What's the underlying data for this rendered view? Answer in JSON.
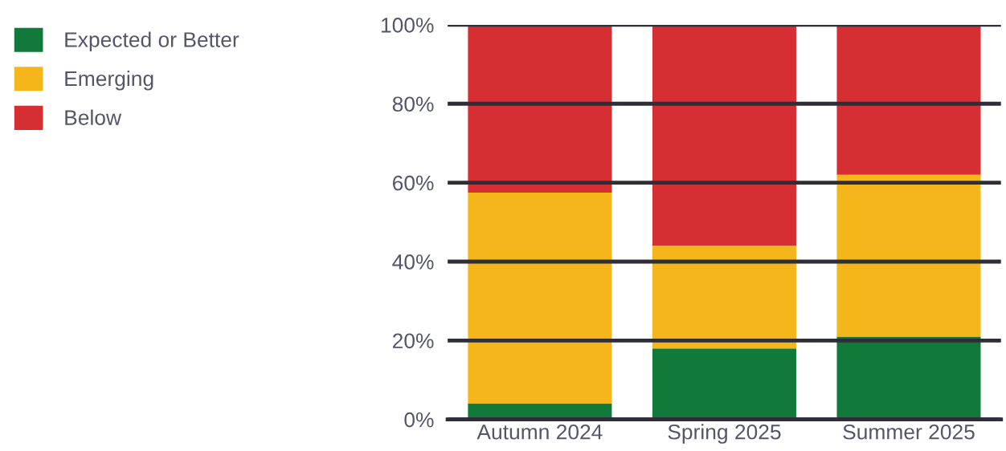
{
  "chart_data": {
    "type": "bar",
    "stacked": true,
    "categories": [
      "Autumn 2024",
      "Spring 2025",
      "Summer 2025"
    ],
    "series": [
      {
        "name": "Expected or Better",
        "color": "#117a3a",
        "values": [
          4,
          18,
          21
        ]
      },
      {
        "name": "Emerging",
        "color": "#f5b61c",
        "values": [
          53.5,
          26,
          41
        ]
      },
      {
        "name": "Below",
        "color": "#d52f33",
        "values": [
          42.5,
          56,
          38
        ]
      }
    ],
    "ylim": [
      0,
      100
    ],
    "yticks": [
      {
        "value": 0,
        "label": "0%"
      },
      {
        "value": 20,
        "label": "20%"
      },
      {
        "value": 40,
        "label": "40%"
      },
      {
        "value": 60,
        "label": "60%"
      },
      {
        "value": 80,
        "label": "80%"
      },
      {
        "value": 100,
        "label": "100%"
      }
    ],
    "grid": "y",
    "legend": "top left"
  }
}
